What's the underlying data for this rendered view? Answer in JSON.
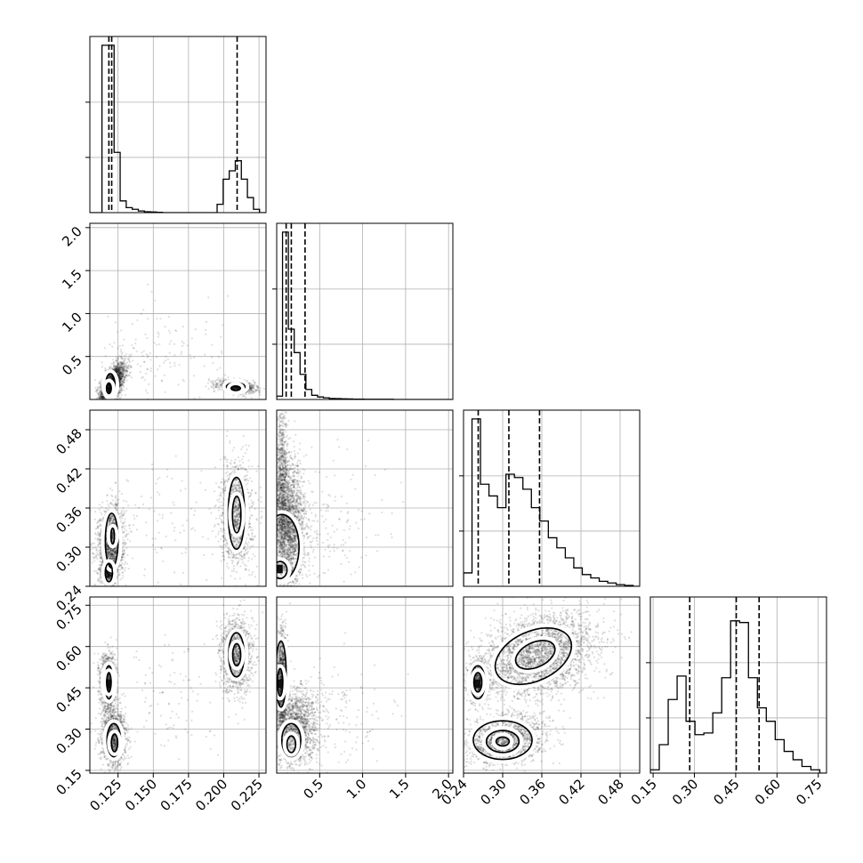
{
  "chart_data": {
    "type": "corner",
    "title": "",
    "parameters": 4,
    "dim_ranges": [
      [
        0.105,
        0.23
      ],
      [
        0.0,
        2.05
      ],
      [
        0.24,
        0.51
      ],
      [
        0.14,
        0.78
      ]
    ],
    "tick_values": [
      [
        0.125,
        0.15,
        0.175,
        0.2,
        0.225
      ],
      [
        0.5,
        1.0,
        1.5,
        2.0
      ],
      [
        0.24,
        0.3,
        0.36,
        0.42,
        0.48
      ],
      [
        0.15,
        0.3,
        0.45,
        0.6,
        0.75
      ]
    ],
    "tick_labels": [
      [
        "0.125",
        "0.150",
        "0.175",
        "0.200",
        "0.225"
      ],
      [
        "0.5",
        "1.0",
        "1.5",
        "2.0"
      ],
      [
        "0.24",
        "0.30",
        "0.36",
        "0.42",
        "0.48"
      ],
      [
        "0.15",
        "0.30",
        "0.45",
        "0.60",
        "0.75"
      ]
    ],
    "grid": true,
    "histograms": [
      {
        "dim": 0,
        "quantiles": [
          0.1185,
          0.1205,
          0.2095
        ],
        "edges": [
          0.105,
          0.1093,
          0.1136,
          0.1179,
          0.1222,
          0.1265,
          0.1308,
          0.1351,
          0.1394,
          0.1437,
          0.148,
          0.1523,
          0.1566,
          0.1609,
          0.1652,
          0.1695,
          0.1738,
          0.1781,
          0.1824,
          0.1867,
          0.191,
          0.1953,
          0.1996,
          0.2039,
          0.2082,
          0.2125,
          0.2168,
          0.2211,
          0.2254,
          0.2297
        ],
        "counts": [
          0,
          0,
          1.0,
          1.0,
          0.36,
          0.07,
          0.03,
          0.02,
          0.01,
          0.005,
          0.004,
          0.002,
          0,
          0,
          0,
          0,
          0,
          0,
          0,
          0,
          0,
          0.05,
          0.2,
          0.25,
          0.31,
          0.2,
          0.09,
          0.02,
          0,
          0
        ]
      },
      {
        "dim": 1,
        "quantiles": [
          0.11,
          0.17,
          0.33
        ],
        "edges": [
          0.0,
          0.068,
          0.136,
          0.204,
          0.272,
          0.34,
          0.408,
          0.476,
          0.544,
          0.612,
          0.68,
          0.748,
          0.816,
          0.884,
          0.952,
          1.02,
          1.088,
          1.156,
          1.224,
          1.292,
          1.36,
          1.428,
          1.496,
          1.564,
          1.632,
          1.7,
          1.768,
          1.836,
          1.904,
          1.972,
          2.04
        ],
        "counts": [
          0.02,
          1.0,
          0.42,
          0.28,
          0.15,
          0.06,
          0.025,
          0.015,
          0.01,
          0.006,
          0.005,
          0.004,
          0.003,
          0.002,
          0.002,
          0.001,
          0.001,
          0.001,
          0.001,
          0.001,
          0,
          0,
          0,
          0,
          0,
          0,
          0,
          0,
          0,
          0
        ]
      },
      {
        "dim": 2,
        "quantiles": [
          0.2625,
          0.3095,
          0.3565
        ],
        "edges": [
          0.24,
          0.253,
          0.266,
          0.279,
          0.292,
          0.305,
          0.318,
          0.331,
          0.344,
          0.357,
          0.37,
          0.383,
          0.396,
          0.409,
          0.422,
          0.435,
          0.448,
          0.461,
          0.474,
          0.487,
          0.5,
          0.513
        ],
        "counts": [
          0.08,
          1.0,
          0.61,
          0.54,
          0.47,
          0.67,
          0.65,
          0.58,
          0.47,
          0.39,
          0.29,
          0.23,
          0.17,
          0.11,
          0.07,
          0.05,
          0.03,
          0.02,
          0.01,
          0.005,
          0
        ]
      },
      {
        "dim": 3,
        "quantiles": [
          0.283,
          0.452,
          0.535
        ],
        "edges": [
          0.14,
          0.1724,
          0.2048,
          0.2372,
          0.2696,
          0.302,
          0.3344,
          0.3668,
          0.3992,
          0.4316,
          0.464,
          0.4964,
          0.5288,
          0.5612,
          0.5936,
          0.626,
          0.6584,
          0.6908,
          0.7232,
          0.7556,
          0.788
        ],
        "counts": [
          0.02,
          0.17,
          0.44,
          0.58,
          0.31,
          0.23,
          0.24,
          0.36,
          0.57,
          0.91,
          0.9,
          0.57,
          0.39,
          0.31,
          0.2,
          0.13,
          0.08,
          0.04,
          0.02,
          0
        ]
      }
    ],
    "scatter_panels": [
      {
        "x_dim": 0,
        "y_dim": 1,
        "clusters": [
          {
            "cx": 0.121,
            "cy": 0.18,
            "sx": 0.0045,
            "sy": 0.12,
            "rho": 0.6,
            "n": 2400,
            "trunc": true
          },
          {
            "cx": 0.209,
            "cy": 0.15,
            "sx": 0.0065,
            "sy": 0.035,
            "rho": -0.3,
            "n": 1100,
            "trunc": true
          },
          {
            "cx": 0.15,
            "cy": 0.45,
            "sx": 0.025,
            "sy": 0.35,
            "rho": 0.3,
            "n": 180,
            "trunc": true
          }
        ],
        "contours": [
          {
            "cx": 0.1195,
            "cy": 0.17,
            "rx": 0.0032,
            "ry": 0.13,
            "rot": 0
          },
          {
            "cx": 0.1185,
            "cy": 0.13,
            "rx": 0.0016,
            "ry": 0.06,
            "rot": 0
          },
          {
            "cx": 0.2085,
            "cy": 0.15,
            "rx": 0.0065,
            "ry": 0.045,
            "rot": 0
          },
          {
            "cx": 0.2085,
            "cy": 0.13,
            "rx": 0.0032,
            "ry": 0.025,
            "rot": 0
          }
        ],
        "dark_cells": [
          {
            "x": 0.1185,
            "y": 0.125,
            "w": 0.0045,
            "h": 0.07
          }
        ]
      },
      {
        "x_dim": 0,
        "y_dim": 2,
        "clusters": [
          {
            "cx": 0.12,
            "cy": 0.305,
            "sx": 0.0045,
            "sy": 0.028,
            "rho": 0.1,
            "n": 1800,
            "trunc": true
          },
          {
            "cx": 0.118,
            "cy": 0.262,
            "sx": 0.0025,
            "sy": 0.009,
            "rho": 0,
            "n": 700,
            "trunc": true
          },
          {
            "cx": 0.209,
            "cy": 0.35,
            "sx": 0.0055,
            "sy": 0.038,
            "rho": 0,
            "n": 1400,
            "trunc": true
          },
          {
            "cx": 0.16,
            "cy": 0.33,
            "sx": 0.025,
            "sy": 0.05,
            "rho": 0,
            "n": 120,
            "trunc": true
          }
        ],
        "contours": [
          {
            "cx": 0.1205,
            "cy": 0.31,
            "rx": 0.0045,
            "ry": 0.042,
            "rot": 0
          },
          {
            "cx": 0.1212,
            "cy": 0.317,
            "rx": 0.0012,
            "ry": 0.012,
            "rot": 0
          },
          {
            "cx": 0.1185,
            "cy": 0.261,
            "rx": 0.0025,
            "ry": 0.014,
            "rot": 0
          },
          {
            "cx": 0.209,
            "cy": 0.352,
            "rx": 0.0058,
            "ry": 0.055,
            "rot": 0
          },
          {
            "cx": 0.2092,
            "cy": 0.35,
            "rx": 0.003,
            "ry": 0.028,
            "rot": 0
          }
        ],
        "dark_cells": [
          {
            "x": 0.116,
            "y": 0.26,
            "w": 0.0045,
            "h": 0.013
          }
        ]
      },
      {
        "x_dim": 0,
        "y_dim": 3,
        "clusters": [
          {
            "cx": 0.118,
            "cy": 0.47,
            "sx": 0.0028,
            "sy": 0.05,
            "rho": 0,
            "n": 1300,
            "trunc": true
          },
          {
            "cx": 0.122,
            "cy": 0.27,
            "sx": 0.0045,
            "sy": 0.05,
            "rho": 0,
            "n": 1500,
            "trunc": true
          },
          {
            "cx": 0.209,
            "cy": 0.57,
            "sx": 0.0055,
            "sy": 0.065,
            "rho": 0,
            "n": 1400,
            "trunc": true
          },
          {
            "cx": 0.16,
            "cy": 0.4,
            "sx": 0.025,
            "sy": 0.1,
            "rho": 0,
            "n": 120,
            "trunc": true
          }
        ],
        "contours": [
          {
            "cx": 0.1185,
            "cy": 0.47,
            "rx": 0.0028,
            "ry": 0.06,
            "rot": 0
          },
          {
            "cx": 0.1185,
            "cy": 0.47,
            "rx": 0.0015,
            "ry": 0.035,
            "rot": 0
          },
          {
            "cx": 0.122,
            "cy": 0.26,
            "rx": 0.0048,
            "ry": 0.06,
            "rot": 0
          },
          {
            "cx": 0.1225,
            "cy": 0.25,
            "rx": 0.0022,
            "ry": 0.032,
            "rot": 0
          },
          {
            "cx": 0.209,
            "cy": 0.57,
            "rx": 0.0055,
            "ry": 0.08,
            "rot": 0
          },
          {
            "cx": 0.2092,
            "cy": 0.57,
            "rx": 0.0028,
            "ry": 0.04,
            "rot": 0
          }
        ],
        "dark_cells": [
          {
            "x": 0.117,
            "y": 0.45,
            "w": 0.0045,
            "h": 0.03
          }
        ]
      },
      {
        "x_dim": 1,
        "y_dim": 2,
        "clusters": [
          {
            "cx": 0.13,
            "cy": 0.33,
            "sx": 0.1,
            "sy": 0.05,
            "rho": 0,
            "n": 2600,
            "trunc": true
          },
          {
            "cx": 0.06,
            "cy": 0.4,
            "sx": 0.035,
            "sy": 0.06,
            "rho": 0,
            "n": 900,
            "trunc": true
          },
          {
            "cx": 0.5,
            "cy": 0.33,
            "sx": 0.35,
            "sy": 0.05,
            "rho": 0,
            "n": 200,
            "trunc": true
          }
        ],
        "contours": [
          {
            "cx": 0.06,
            "cy": 0.3,
            "rx": 0.2,
            "ry": 0.05,
            "rot": 0
          },
          {
            "cx": 0.04,
            "cy": 0.265,
            "rx": 0.08,
            "ry": 0.013,
            "rot": 0
          }
        ],
        "dark_cells": [
          {
            "x": 0.0,
            "y": 0.26,
            "w": 0.07,
            "h": 0.013
          }
        ]
      },
      {
        "x_dim": 1,
        "y_dim": 3,
        "clusters": [
          {
            "cx": 0.06,
            "cy": 0.47,
            "sx": 0.03,
            "sy": 0.09,
            "rho": 0,
            "n": 1600,
            "trunc": true
          },
          {
            "cx": 0.22,
            "cy": 0.3,
            "sx": 0.12,
            "sy": 0.07,
            "rho": 0,
            "n": 1600,
            "trunc": true
          },
          {
            "cx": 0.6,
            "cy": 0.35,
            "sx": 0.35,
            "sy": 0.08,
            "rho": 0,
            "n": 220,
            "trunc": true
          }
        ],
        "contours": [
          {
            "cx": 0.05,
            "cy": 0.5,
            "rx": 0.06,
            "ry": 0.12,
            "rot": 0
          },
          {
            "cx": 0.04,
            "cy": 0.47,
            "rx": 0.03,
            "ry": 0.05,
            "rot": 0
          },
          {
            "cx": 0.17,
            "cy": 0.26,
            "rx": 0.11,
            "ry": 0.06,
            "rot": 0
          },
          {
            "cx": 0.17,
            "cy": 0.245,
            "rx": 0.05,
            "ry": 0.03,
            "rot": 0
          }
        ],
        "dark_cells": [
          {
            "x": 0.0,
            "y": 0.45,
            "w": 0.07,
            "h": 0.03
          }
        ]
      },
      {
        "x_dim": 2,
        "y_dim": 3,
        "clusters": [
          {
            "cx": 0.355,
            "cy": 0.57,
            "sx": 0.045,
            "sy": 0.075,
            "rho": 0.3,
            "n": 2800,
            "trunc": true
          },
          {
            "cx": 0.305,
            "cy": 0.26,
            "sx": 0.03,
            "sy": 0.045,
            "rho": 0.2,
            "n": 1700,
            "trunc": true
          },
          {
            "cx": 0.262,
            "cy": 0.47,
            "sx": 0.008,
            "sy": 0.035,
            "rho": 0,
            "n": 900,
            "trunc": true
          }
        ],
        "contours": [
          {
            "cx": 0.347,
            "cy": 0.565,
            "rx": 0.062,
            "ry": 0.09,
            "rot": -25
          },
          {
            "cx": 0.35,
            "cy": 0.57,
            "rx": 0.032,
            "ry": 0.045,
            "rot": -25
          },
          {
            "cx": 0.3,
            "cy": 0.26,
            "rx": 0.045,
            "ry": 0.07,
            "rot": 0
          },
          {
            "cx": 0.3,
            "cy": 0.255,
            "rx": 0.025,
            "ry": 0.04,
            "rot": 0
          },
          {
            "cx": 0.3,
            "cy": 0.255,
            "rx": 0.01,
            "ry": 0.016,
            "rot": 0
          },
          {
            "cx": 0.262,
            "cy": 0.47,
            "rx": 0.011,
            "ry": 0.06,
            "rot": 0
          },
          {
            "cx": 0.262,
            "cy": 0.47,
            "rx": 0.006,
            "ry": 0.035,
            "rot": 0
          }
        ],
        "dark_cells": [
          {
            "x": 0.256,
            "y": 0.45,
            "w": 0.01,
            "h": 0.03
          }
        ]
      }
    ]
  }
}
